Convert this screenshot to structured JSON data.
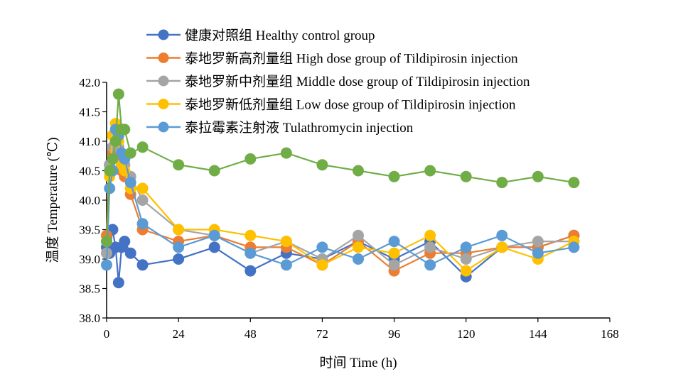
{
  "chart_data": {
    "type": "line",
    "title": "",
    "xlabel": "时间 Time (h)",
    "ylabel": "温度 Temperature (℃)",
    "xlim": [
      0,
      168
    ],
    "ylim": [
      38.0,
      42.0
    ],
    "x_ticks": [
      "0",
      "24",
      "48",
      "72",
      "96",
      "120",
      "144",
      "168"
    ],
    "y_ticks": [
      "38.0",
      "38.5",
      "39.0",
      "39.5",
      "40.0",
      "40.5",
      "41.0",
      "41.5",
      "42.0"
    ],
    "x_tick_values": [
      0,
      24,
      48,
      72,
      96,
      120,
      144,
      168
    ],
    "y_tick_values": [
      38.0,
      38.5,
      39.0,
      39.5,
      40.0,
      40.5,
      41.0,
      41.5,
      42.0
    ],
    "grid": false,
    "legend_position": "top",
    "x": [
      0,
      1,
      2,
      3,
      4,
      5,
      6,
      8,
      12,
      24,
      36,
      48,
      60,
      72,
      84,
      96,
      108,
      120,
      132,
      144,
      156
    ],
    "series": [
      {
        "name": "健康对照组 Healthy control group",
        "color": "#4472C4",
        "values": [
          39.2,
          39.1,
          39.5,
          39.2,
          38.6,
          39.2,
          39.3,
          39.1,
          38.9,
          39.0,
          39.2,
          38.8,
          39.1,
          39.0,
          39.3,
          39.0,
          39.3,
          38.7,
          39.2,
          39.2,
          39.4
        ]
      },
      {
        "name": "泰地罗新高剂量组 High dose group of Tildipirosin injection",
        "color": "#ED7D31",
        "values": [
          39.4,
          40.6,
          40.8,
          41.0,
          40.7,
          40.5,
          40.4,
          40.1,
          39.5,
          39.3,
          39.4,
          39.2,
          39.2,
          38.9,
          39.3,
          38.8,
          39.1,
          39.1,
          39.2,
          39.2,
          39.4
        ]
      },
      {
        "name": "泰地罗新中剂量组 Middle dose group of Tildipirosin injection",
        "color": "#A5A5A5",
        "values": [
          39.1,
          40.6,
          40.9,
          41.1,
          40.9,
          40.6,
          40.6,
          40.4,
          40.0,
          39.5,
          39.4,
          39.1,
          39.3,
          39.0,
          39.4,
          38.9,
          39.2,
          39.0,
          39.2,
          39.3,
          39.3
        ]
      },
      {
        "name": "泰地罗新低剂量组 Low dose group of Tildipirosin injection",
        "color": "#FFC000",
        "values": [
          39.3,
          40.4,
          41.1,
          41.3,
          41.0,
          40.6,
          40.5,
          40.2,
          40.2,
          39.5,
          39.5,
          39.4,
          39.3,
          38.9,
          39.2,
          39.1,
          39.4,
          38.8,
          39.2,
          39.0,
          39.3
        ]
      },
      {
        "name": "泰拉霉素注射液 Tulathromycin injection",
        "color": "#5B9BD5",
        "values": [
          38.9,
          40.2,
          40.5,
          41.2,
          41.1,
          40.8,
          40.7,
          40.3,
          39.6,
          39.2,
          39.4,
          39.1,
          38.9,
          39.2,
          39.0,
          39.3,
          38.9,
          39.2,
          39.4,
          39.1,
          39.2
        ]
      },
      {
        "name": "",
        "color": "#70AD47",
        "values": [
          39.3,
          40.5,
          40.7,
          41.0,
          41.8,
          41.2,
          41.2,
          40.8,
          40.9,
          40.6,
          40.5,
          40.7,
          40.8,
          40.6,
          40.5,
          40.4,
          40.5,
          40.4,
          40.3,
          40.4,
          40.3
        ]
      }
    ]
  }
}
